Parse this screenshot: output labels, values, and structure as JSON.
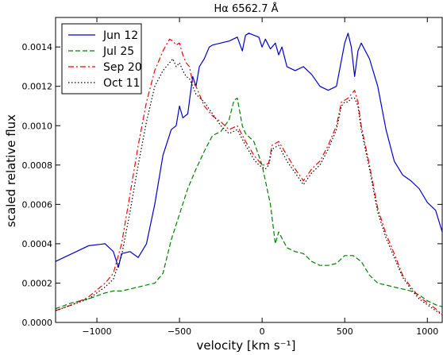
{
  "chart_data": {
    "type": "line",
    "title": "Hα 6562.7 Å",
    "xlabel": "velocity [km s⁻¹]",
    "ylabel": "scaled relative flux",
    "xlim": [
      -1250,
      1090
    ],
    "ylim": [
      0.0,
      0.00155
    ],
    "xticks": [
      -1000,
      -500,
      0,
      500,
      1000
    ],
    "xtick_labels": [
      "−1000",
      "−500",
      "0",
      "500",
      "1000"
    ],
    "yticks": [
      0.0,
      0.0002,
      0.0004,
      0.0006,
      0.0008,
      0.001,
      0.0012,
      0.0014
    ],
    "ytick_labels": [
      "0.0000",
      "0.0002",
      "0.0004",
      "0.0006",
      "0.0008",
      "0.0010",
      "0.0012",
      "0.0014"
    ],
    "grid": false,
    "legend_position": "top-left",
    "series": [
      {
        "name": "Jun 12",
        "color": "#0000cc",
        "dash": "solid",
        "x": [
          -1250,
          -1150,
          -1050,
          -950,
          -900,
          -870,
          -850,
          -800,
          -750,
          -700,
          -650,
          -600,
          -550,
          -520,
          -500,
          -480,
          -450,
          -420,
          -400,
          -380,
          -350,
          -320,
          -300,
          -250,
          -200,
          -150,
          -120,
          -100,
          -80,
          -50,
          -20,
          0,
          20,
          50,
          80,
          100,
          120,
          150,
          200,
          250,
          300,
          350,
          400,
          450,
          500,
          520,
          540,
          560,
          580,
          600,
          650,
          700,
          750,
          800,
          850,
          900,
          950,
          1000,
          1050,
          1090
        ],
        "y": [
          0.00031,
          0.00035,
          0.00039,
          0.0004,
          0.00036,
          0.00028,
          0.00035,
          0.00036,
          0.00033,
          0.0004,
          0.0006,
          0.00085,
          0.00098,
          0.001,
          0.0011,
          0.00104,
          0.00106,
          0.00125,
          0.0012,
          0.0013,
          0.00134,
          0.0014,
          0.00141,
          0.00142,
          0.00143,
          0.00145,
          0.00138,
          0.00146,
          0.00147,
          0.00146,
          0.00145,
          0.0014,
          0.00144,
          0.00139,
          0.00142,
          0.00136,
          0.0014,
          0.0013,
          0.00128,
          0.0013,
          0.00126,
          0.0012,
          0.00118,
          0.0012,
          0.00142,
          0.00147,
          0.0014,
          0.00125,
          0.00138,
          0.00142,
          0.00134,
          0.0012,
          0.00098,
          0.00082,
          0.00075,
          0.00072,
          0.00068,
          0.00061,
          0.00057,
          0.00046
        ]
      },
      {
        "name": "Jul 25",
        "color": "#008000",
        "dash": "dashed",
        "x": [
          -1250,
          -1150,
          -1050,
          -950,
          -900,
          -850,
          -800,
          -750,
          -700,
          -650,
          -600,
          -550,
          -500,
          -450,
          -400,
          -350,
          -300,
          -250,
          -200,
          -170,
          -150,
          -120,
          -100,
          -50,
          0,
          50,
          80,
          100,
          150,
          200,
          250,
          300,
          350,
          400,
          450,
          500,
          550,
          600,
          650,
          700,
          750,
          800,
          850,
          900,
          950,
          1000,
          1050,
          1090
        ],
        "y": [
          7e-05,
          0.0001,
          0.00012,
          0.00015,
          0.00016,
          0.00016,
          0.00017,
          0.00018,
          0.00019,
          0.0002,
          0.00025,
          0.00042,
          0.00055,
          0.00068,
          0.00078,
          0.00087,
          0.00095,
          0.00097,
          0.00103,
          0.00113,
          0.00114,
          0.001,
          0.00096,
          0.00092,
          0.0008,
          0.0006,
          0.0004,
          0.00046,
          0.00038,
          0.00036,
          0.00035,
          0.00031,
          0.00029,
          0.00029,
          0.0003,
          0.00034,
          0.00034,
          0.00031,
          0.00024,
          0.0002,
          0.00019,
          0.00018,
          0.00017,
          0.00016,
          0.00014,
          0.00011,
          9e-05,
          8e-05
        ]
      },
      {
        "name": "Sep 20",
        "color": "#ff0000",
        "dash": "dashdot",
        "x": [
          -1250,
          -1150,
          -1050,
          -950,
          -900,
          -850,
          -800,
          -750,
          -700,
          -650,
          -600,
          -560,
          -540,
          -520,
          -500,
          -480,
          -460,
          -440,
          -420,
          -400,
          -350,
          -300,
          -250,
          -200,
          -150,
          -100,
          -50,
          -20,
          0,
          20,
          40,
          60,
          100,
          150,
          200,
          250,
          300,
          350,
          400,
          450,
          480,
          500,
          520,
          540,
          560,
          580,
          600,
          650,
          700,
          750,
          800,
          850,
          900,
          950,
          1000,
          1050,
          1090
        ],
        "y": [
          6e-05,
          9e-05,
          0.00013,
          0.0002,
          0.00025,
          0.0004,
          0.00065,
          0.0009,
          0.00112,
          0.00128,
          0.00138,
          0.00144,
          0.00143,
          0.00141,
          0.00142,
          0.00136,
          0.00132,
          0.0013,
          0.00122,
          0.0012,
          0.0011,
          0.00105,
          0.00102,
          0.00098,
          0.001,
          0.00092,
          0.00085,
          0.00082,
          0.0008,
          0.0008,
          0.00081,
          0.0009,
          0.00092,
          0.00085,
          0.00078,
          0.00072,
          0.00078,
          0.00082,
          0.0009,
          0.001,
          0.00112,
          0.00113,
          0.00114,
          0.00116,
          0.00118,
          0.00112,
          0.001,
          0.0008,
          0.00058,
          0.00045,
          0.00035,
          0.00024,
          0.00018,
          0.00013,
          0.0001,
          7e-05,
          4e-05
        ]
      },
      {
        "name": "Oct 11",
        "color": "#000000",
        "dash": "dotted",
        "x": [
          -1250,
          -1150,
          -1050,
          -950,
          -900,
          -850,
          -800,
          -750,
          -700,
          -650,
          -600,
          -560,
          -540,
          -520,
          -500,
          -480,
          -460,
          -440,
          -420,
          -400,
          -350,
          -300,
          -250,
          -200,
          -150,
          -100,
          -50,
          -20,
          0,
          20,
          40,
          60,
          100,
          150,
          200,
          250,
          300,
          350,
          400,
          450,
          480,
          500,
          520,
          540,
          560,
          580,
          600,
          650,
          700,
          750,
          800,
          850,
          900,
          950,
          1000,
          1050,
          1090
        ],
        "y": [
          6e-05,
          9e-05,
          0.00012,
          0.00018,
          0.00022,
          0.00034,
          0.00056,
          0.0008,
          0.00102,
          0.0012,
          0.00128,
          0.00132,
          0.00134,
          0.0013,
          0.00132,
          0.00128,
          0.00125,
          0.00124,
          0.0012,
          0.00116,
          0.00112,
          0.00106,
          0.001,
          0.00096,
          0.00098,
          0.0009,
          0.00083,
          0.0008,
          0.00079,
          0.00078,
          0.0008,
          0.00088,
          0.0009,
          0.00082,
          0.00076,
          0.0007,
          0.00076,
          0.0008,
          0.00088,
          0.00098,
          0.0011,
          0.00112,
          0.00112,
          0.00114,
          0.00114,
          0.0011,
          0.00098,
          0.00078,
          0.00056,
          0.00043,
          0.00033,
          0.00023,
          0.00017,
          0.00012,
          9e-05,
          6e-05,
          4e-05
        ]
      }
    ]
  }
}
